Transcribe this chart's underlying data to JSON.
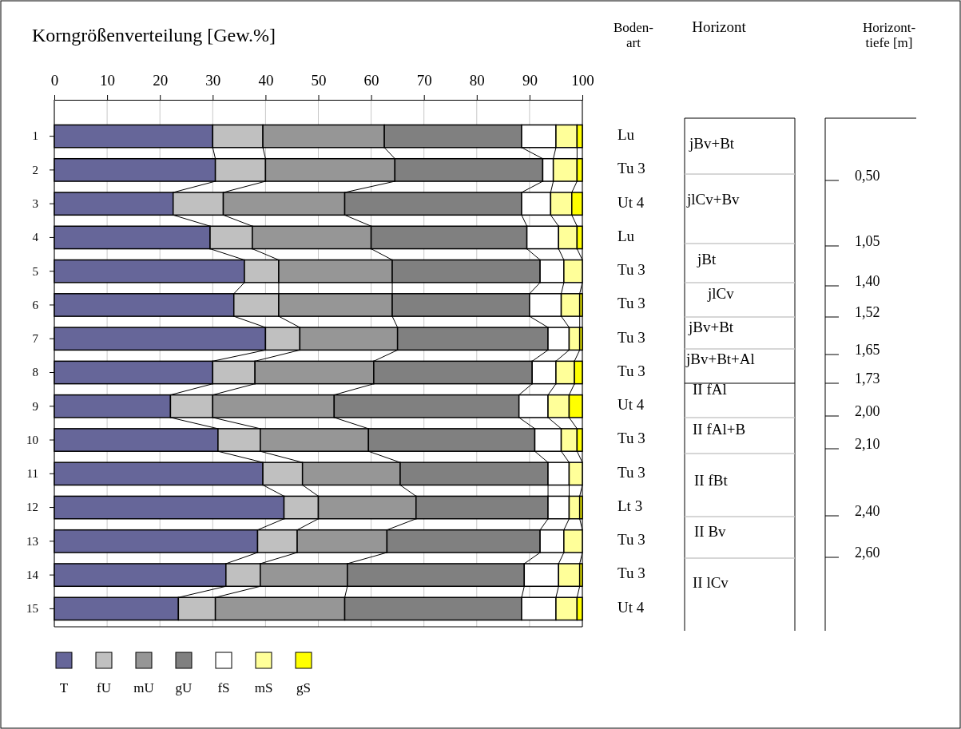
{
  "chart_data": {
    "type": "bar",
    "orientation": "horizontal",
    "stacked": true,
    "title": "Korngrößenverteilung [Gew.%]",
    "categories": [
      "1",
      "2",
      "3",
      "4",
      "5",
      "6",
      "7",
      "8",
      "9",
      "10",
      "11",
      "12",
      "13",
      "14",
      "15"
    ],
    "xlim": [
      0,
      100
    ],
    "xticks": [
      0,
      10,
      20,
      30,
      40,
      50,
      60,
      70,
      80,
      90,
      100
    ],
    "grid": "x",
    "legend": "bottom",
    "series": [
      {
        "name": "T",
        "color": "#666699",
        "values": [
          30,
          30.5,
          22.5,
          29.5,
          36,
          34,
          40,
          30,
          22,
          31,
          39.5,
          43.5,
          38.5,
          32.5,
          23.5
        ]
      },
      {
        "name": "fU",
        "color": "#c0c0c0",
        "values": [
          9.5,
          9.5,
          9.5,
          8,
          6.5,
          8.5,
          6.5,
          8,
          8,
          8,
          7.5,
          6.5,
          7.5,
          6.5,
          7
        ]
      },
      {
        "name": "mU",
        "color": "#969696",
        "values": [
          23,
          24.5,
          23,
          22.5,
          21.5,
          21.5,
          18.5,
          22.5,
          23,
          20.5,
          18.5,
          18.5,
          17,
          16.5,
          24.5
        ]
      },
      {
        "name": "gU",
        "color": "#808080",
        "values": [
          26,
          28,
          33.5,
          29.5,
          28,
          26,
          28.5,
          30,
          35,
          31.5,
          28,
          25,
          29,
          33.5,
          33.5
        ]
      },
      {
        "name": "fS",
        "color": "#ffffff",
        "values": [
          6.5,
          2,
          5.5,
          6,
          4.5,
          6,
          4,
          4.5,
          5.5,
          5,
          4,
          4,
          4.5,
          6.5,
          6.5
        ]
      },
      {
        "name": "mS",
        "color": "#ffff99",
        "values": [
          4,
          4.5,
          4,
          3.5,
          3.5,
          3.5,
          2,
          3.5,
          4,
          3,
          2.5,
          2,
          3.5,
          4,
          4
        ]
      },
      {
        "name": "gS",
        "color": "#ffff00",
        "values": [
          1,
          1,
          2,
          1,
          0,
          0.5,
          0.5,
          1.5,
          2.5,
          1,
          0,
          0.5,
          0,
          0.5,
          1
        ]
      }
    ],
    "annotations": [
      "Boden-\nart",
      "Horizont",
      "Horizont-\ntiefe [m]",
      "Lu",
      "Tu 3",
      "Ut 4",
      "Lu",
      "Tu 3",
      "Tu 3",
      "Tu 3",
      "Tu 3",
      "Ut 4",
      "Tu 3",
      "Tu 3",
      "Lt 3",
      "Tu 3",
      "Tu 3",
      "Ut 4",
      "jBv+Bt",
      "jlCv+Bv",
      "jBt",
      "jlCv",
      "jBv+Bt",
      "jBv+Bt+Al",
      "II fAl",
      "II fAl+B",
      "II fBt",
      "II Bv",
      "II lCv",
      "0,50",
      "1,05",
      "1,40",
      "1,52",
      "1,65",
      "1,73",
      "2,00",
      "2,10",
      "2,40",
      "2,60"
    ]
  }
}
